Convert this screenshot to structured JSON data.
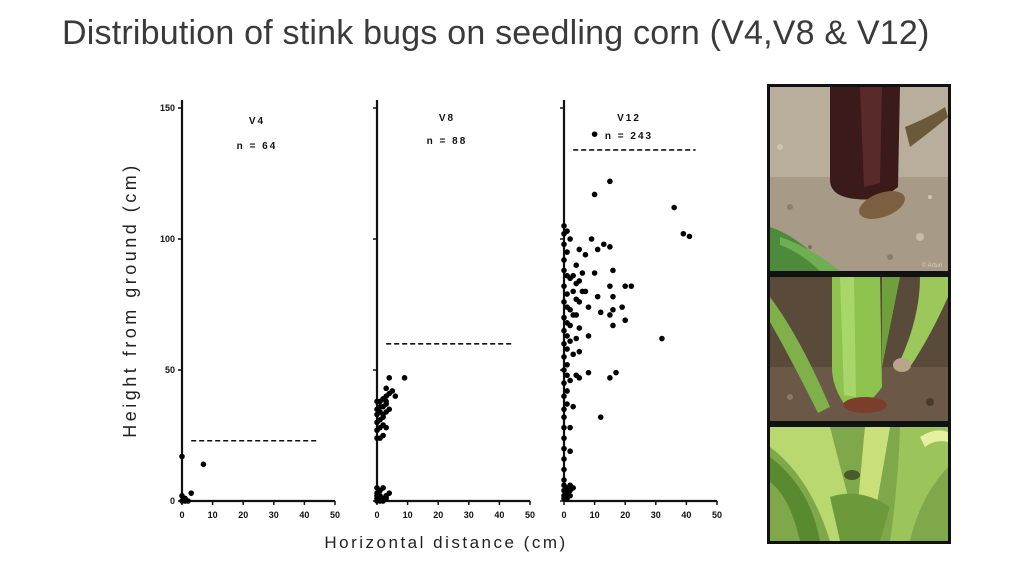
{
  "slide": {
    "title": "Distribution of stink bugs on seedling corn (V4,V8 & V12)"
  },
  "photos": [
    {
      "subject": "stink bug at base of corn stem",
      "watermark": "© Arturi"
    },
    {
      "subject": "stink bug on young corn stalk"
    },
    {
      "subject": "green corn leaves with stink bug"
    }
  ],
  "chart_data": {
    "type": "scatter",
    "ylabel": "Height from ground (cm)",
    "xlabel": "Horizontal distance (cm)",
    "ylim": [
      0,
      150
    ],
    "xlim": [
      0,
      50
    ],
    "y_ticks": [
      0,
      50,
      100,
      150
    ],
    "x_ticks": [
      0,
      10,
      20,
      30,
      40,
      50
    ],
    "grid": false,
    "panels": [
      {
        "label": "V4",
        "n_label": "n = 64",
        "threshold_height": 23,
        "threshold_x_end": 44,
        "points": [
          [
            0,
            17
          ],
          [
            0,
            2
          ],
          [
            1,
            1
          ],
          [
            0,
            0
          ],
          [
            1,
            0
          ],
          [
            2,
            0
          ],
          [
            3,
            3
          ],
          [
            7,
            14
          ]
        ]
      },
      {
        "label": "V8",
        "n_label": "n = 88",
        "threshold_height": 60,
        "threshold_x_end": 44,
        "points": [
          [
            0,
            24
          ],
          [
            1,
            24
          ],
          [
            2,
            25
          ],
          [
            0,
            27
          ],
          [
            1,
            28
          ],
          [
            2,
            29
          ],
          [
            3,
            28
          ],
          [
            0,
            30
          ],
          [
            1,
            31
          ],
          [
            2,
            32
          ],
          [
            0,
            33
          ],
          [
            1,
            34
          ],
          [
            2,
            33
          ],
          [
            3,
            34
          ],
          [
            0,
            35
          ],
          [
            1,
            36
          ],
          [
            2,
            36
          ],
          [
            3,
            37
          ],
          [
            4,
            35
          ],
          [
            0,
            38
          ],
          [
            1,
            38
          ],
          [
            2,
            39
          ],
          [
            3,
            38
          ],
          [
            3,
            40
          ],
          [
            4,
            41
          ],
          [
            5,
            42
          ],
          [
            6,
            40
          ],
          [
            3,
            43
          ],
          [
            4,
            47
          ],
          [
            9,
            47
          ],
          [
            0,
            0
          ],
          [
            1,
            0
          ],
          [
            2,
            0
          ],
          [
            0,
            1
          ],
          [
            1,
            1
          ],
          [
            2,
            1
          ],
          [
            3,
            1
          ],
          [
            0,
            2
          ],
          [
            1,
            2
          ],
          [
            3,
            2
          ],
          [
            4,
            3
          ],
          [
            0,
            3
          ],
          [
            1,
            4
          ],
          [
            0,
            5
          ],
          [
            2,
            5
          ]
        ]
      },
      {
        "label": "V12",
        "n_label": "n = 243",
        "threshold_height": 134,
        "threshold_x_end": 43,
        "points": [
          [
            0,
            105
          ],
          [
            0,
            102
          ],
          [
            1,
            103
          ],
          [
            0,
            98
          ],
          [
            1,
            95
          ],
          [
            0,
            92
          ],
          [
            2,
            100
          ],
          [
            0,
            88
          ],
          [
            1,
            86
          ],
          [
            2,
            85
          ],
          [
            3,
            86
          ],
          [
            4,
            83
          ],
          [
            0,
            82
          ],
          [
            1,
            79
          ],
          [
            3,
            80
          ],
          [
            4,
            77
          ],
          [
            0,
            76
          ],
          [
            1,
            74
          ],
          [
            2,
            73
          ],
          [
            3,
            71
          ],
          [
            0,
            70
          ],
          [
            1,
            68
          ],
          [
            2,
            67
          ],
          [
            0,
            65
          ],
          [
            1,
            63
          ],
          [
            2,
            61
          ],
          [
            0,
            60
          ],
          [
            1,
            58
          ],
          [
            3,
            56
          ],
          [
            0,
            55
          ],
          [
            1,
            52
          ],
          [
            0,
            50
          ],
          [
            1,
            48
          ],
          [
            2,
            46
          ],
          [
            0,
            45
          ],
          [
            1,
            42
          ],
          [
            0,
            40
          ],
          [
            1,
            37
          ],
          [
            0,
            35
          ],
          [
            0,
            32
          ],
          [
            0,
            28
          ],
          [
            0,
            24
          ],
          [
            0,
            20
          ],
          [
            0,
            16
          ],
          [
            0,
            12
          ],
          [
            0,
            8
          ],
          [
            0,
            6
          ],
          [
            1,
            5
          ],
          [
            2,
            6
          ],
          [
            0,
            4
          ],
          [
            1,
            3
          ],
          [
            2,
            4
          ],
          [
            3,
            5
          ],
          [
            0,
            2
          ],
          [
            1,
            1
          ],
          [
            2,
            2
          ],
          [
            0,
            1
          ],
          [
            2,
            19
          ],
          [
            2,
            28
          ],
          [
            3,
            36
          ],
          [
            4,
            48
          ],
          [
            5,
            47
          ],
          [
            5,
            57
          ],
          [
            4,
            62
          ],
          [
            5,
            66
          ],
          [
            4,
            71
          ],
          [
            5,
            76
          ],
          [
            6,
            80
          ],
          [
            5,
            84
          ],
          [
            6,
            87
          ],
          [
            4,
            90
          ],
          [
            5,
            96
          ],
          [
            7,
            94
          ],
          [
            7,
            80
          ],
          [
            8,
            74
          ],
          [
            8,
            63
          ],
          [
            8,
            49
          ],
          [
            9,
            100
          ],
          [
            10,
            117
          ],
          [
            10,
            140
          ],
          [
            11,
            96
          ],
          [
            10,
            87
          ],
          [
            11,
            78
          ],
          [
            12,
            72
          ],
          [
            12,
            32
          ],
          [
            13,
            98
          ],
          [
            15,
            122
          ],
          [
            15,
            97
          ],
          [
            16,
            88
          ],
          [
            15,
            82
          ],
          [
            16,
            73
          ],
          [
            15,
            71
          ],
          [
            16,
            67
          ],
          [
            15,
            47
          ],
          [
            16,
            78
          ],
          [
            17,
            49
          ],
          [
            20,
            82
          ],
          [
            19,
            74
          ],
          [
            20,
            69
          ],
          [
            22,
            82
          ],
          [
            36,
            112
          ],
          [
            39,
            102
          ],
          [
            41,
            101
          ],
          [
            32,
            62
          ]
        ]
      }
    ]
  }
}
